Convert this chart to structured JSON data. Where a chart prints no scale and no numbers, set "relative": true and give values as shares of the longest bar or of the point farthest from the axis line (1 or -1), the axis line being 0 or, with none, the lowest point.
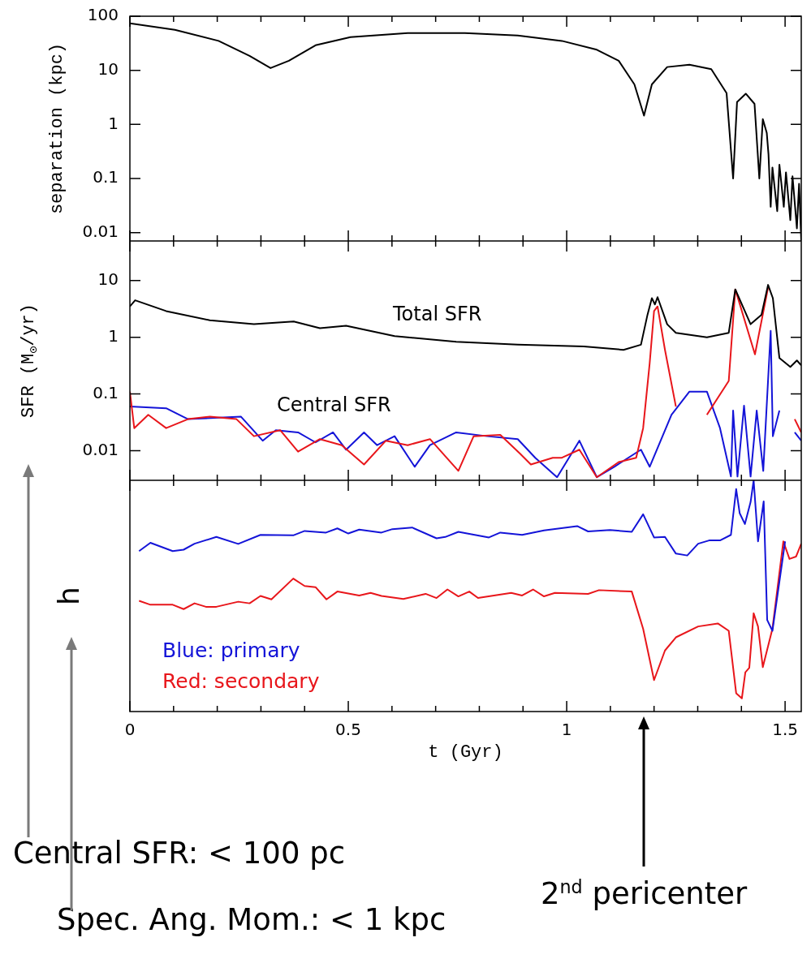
{
  "chart_data": [
    {
      "type": "line",
      "ylabel": "separation (kpc)",
      "log": "y",
      "xlim": [
        0,
        1.537
      ],
      "ylim": [
        0.007,
        100
      ],
      "yticks": [
        0.01,
        0.1,
        1,
        10,
        100
      ],
      "tick_labels": "y",
      "xticks": [
        0,
        {
          "value": 0.1,
          "label": null
        },
        {
          "value": 0.2,
          "label": null
        },
        {
          "value": 0.3,
          "label": null
        },
        {
          "value": 0.4,
          "label": null
        },
        0.5,
        {
          "value": 0.6,
          "label": null
        },
        {
          "value": 0.7,
          "label": null
        },
        {
          "value": 0.8,
          "label": null
        },
        {
          "value": 0.9,
          "label": null
        },
        1,
        {
          "value": 1.1,
          "label": null
        },
        {
          "value": 1.2,
          "label": null
        },
        {
          "value": 1.3,
          "label": null
        },
        {
          "value": 1.4,
          "label": null
        },
        1.5
      ],
      "series": [
        {
          "color": "#000000",
          "x": [
            0,
            0.103,
            0.203,
            0.274,
            0.322,
            0.364,
            0.425,
            0.505,
            0.636,
            0.767,
            0.888,
            0.989,
            1.069,
            1.119,
            1.155,
            1.177,
            1.195,
            1.23,
            1.281,
            1.331,
            1.366,
            1.381,
            1.39,
            1.41,
            1.43,
            1.441,
            1.449,
            1.458,
            1.462,
            1.467,
            1.471,
            1.482,
            1.487,
            1.497,
            1.502,
            1.512,
            1.517,
            1.527,
            1.532,
            1.537
          ],
          "values": [
            74,
            56,
            35,
            18.5,
            11,
            15,
            29,
            41,
            49,
            49,
            44,
            35,
            24,
            15,
            5.5,
            1.45,
            5.5,
            11.5,
            12.7,
            10.5,
            3.8,
            0.1,
            2.6,
            3.7,
            2.4,
            0.1,
            1.25,
            0.7,
            0.28,
            0.03,
            0.16,
            0.025,
            0.18,
            0.03,
            0.13,
            0.017,
            0.11,
            0.012,
            0.08,
            0.007
          ]
        }
      ]
    },
    {
      "type": "line",
      "ylabel": "SFR (M$_{⊙}$/yr)",
      "log": "y",
      "xlim": [
        0,
        1.537
      ],
      "ylim": [
        0.003,
        50
      ],
      "yticks": [
        0.01,
        0.1,
        1,
        10
      ],
      "tick_labels": "y",
      "xticks": [
        0,
        {
          "value": 0.1,
          "label": null
        },
        {
          "value": 0.2,
          "label": null
        },
        {
          "value": 0.3,
          "label": null
        },
        {
          "value": 0.4,
          "label": null
        },
        0.5,
        {
          "value": 0.6,
          "label": null
        },
        {
          "value": 0.7,
          "label": null
        },
        {
          "value": 0.8,
          "label": null
        },
        {
          "value": 0.9,
          "label": null
        },
        1,
        {
          "value": 1.1,
          "label": null
        },
        {
          "value": 1.2,
          "label": null
        },
        {
          "value": 1.3,
          "label": null
        },
        {
          "value": 1.4,
          "label": null
        },
        1.5
      ],
      "annotations": [
        "Total SFR",
        "Central SFR"
      ],
      "series": [
        {
          "color": "#000000",
          "x": [
            0,
            0.012,
            0.083,
            0.183,
            0.284,
            0.375,
            0.435,
            0.495,
            0.606,
            0.747,
            0.888,
            1.039,
            1.13,
            1.17,
            1.185,
            1.195,
            1.202,
            1.208,
            1.23,
            1.25,
            1.321,
            1.371,
            1.386,
            1.421,
            1.446,
            1.461,
            1.472,
            1.487,
            1.512,
            1.527,
            1.537
          ],
          "values": [
            3.5,
            4.5,
            2.9,
            2.0,
            1.7,
            1.9,
            1.45,
            1.6,
            1.05,
            0.83,
            0.74,
            0.69,
            0.6,
            0.74,
            2.5,
            4.9,
            3.8,
            5.1,
            1.7,
            1.2,
            1.0,
            1.2,
            7,
            1.7,
            2.5,
            8.4,
            4.9,
            0.43,
            0.3,
            0.39,
            0.32
          ]
        },
        {
          "color": "#e8161b",
          "x": [
            0,
            0.01,
            0.042,
            0.083,
            0.133,
            0.183,
            0.244,
            0.284,
            0.344,
            0.385,
            0.435,
            0.485,
            0.536,
            0.586,
            0.636,
            0.687,
            0.752,
            0.787,
            0.848,
            0.893,
            0.918,
            0.968,
            0.989,
            1.029,
            1.069,
            1.119,
            1.159,
            1.175,
            1.19,
            1.2,
            1.208,
            1.225,
            1.25,
            1.276,
            1.301,
            1.321,
            1.371,
            1.386,
            1.431,
            1.461,
            1.492,
            1.512,
            1.522,
            1.537
          ],
          "values": [
            0.11,
            0.025,
            0.043,
            0.025,
            0.036,
            0.04,
            0.036,
            0.018,
            0.023,
            0.0096,
            0.016,
            0.0125,
            0.0057,
            0.015,
            0.0125,
            0.016,
            0.0044,
            0.018,
            0.019,
            0.0089,
            0.0057,
            0.0075,
            0.0075,
            0.0104,
            0.0034,
            0.0063,
            0.0075,
            0.025,
            0.35,
            2.9,
            3.5,
            0.6,
            0.06,
            null,
            null,
            0.043,
            0.17,
            7,
            0.5,
            7.5,
            null,
            null,
            0.036,
            0.021
          ]
        },
        {
          "color": "#1414d8",
          "x": [
            0,
            0.083,
            0.133,
            0.254,
            0.304,
            0.334,
            0.385,
            0.425,
            0.465,
            0.495,
            0.536,
            0.566,
            0.606,
            0.652,
            0.687,
            0.747,
            0.818,
            0.888,
            0.928,
            0.978,
            1.029,
            1.069,
            1.109,
            1.17,
            1.19,
            1.24,
            1.281,
            1.321,
            1.351,
            1.376,
            1.381,
            1.391,
            1.406,
            1.421,
            1.435,
            1.45,
            1.467,
            1.472,
            1.487,
            1.503,
            1.522,
            1.537
          ],
          "values": [
            0.06,
            0.056,
            0.036,
            0.04,
            0.015,
            0.023,
            0.021,
            0.014,
            0.021,
            0.0104,
            0.021,
            0.0125,
            0.018,
            0.0052,
            0.0125,
            0.021,
            0.018,
            0.016,
            0.0075,
            0.0034,
            0.015,
            0.0034,
            0.0052,
            0.0104,
            0.0052,
            0.043,
            0.11,
            0.11,
            0.025,
            0.0035,
            0.051,
            0.0035,
            0.062,
            0.0035,
            0.051,
            0.0044,
            1.3,
            0.018,
            0.051,
            null,
            0.021,
            0.015
          ]
        }
      ]
    },
    {
      "type": "line",
      "ylabel": "h",
      "xlabel": "t (Gyr)",
      "relative": true,
      "xlim": [
        0,
        1.537
      ],
      "tick_labels": "x",
      "legend": "bottom left",
      "xticks": [
        0,
        {
          "value": 0.1,
          "label": null
        },
        {
          "value": 0.2,
          "label": null
        },
        {
          "value": 0.3,
          "label": null
        },
        {
          "value": 0.4,
          "label": null
        },
        0.5,
        {
          "value": 0.6,
          "label": null
        },
        {
          "value": 0.7,
          "label": null
        },
        {
          "value": 0.8,
          "label": null
        },
        {
          "value": 0.9,
          "label": null
        },
        1,
        {
          "value": 1.1,
          "label": null
        },
        {
          "value": 1.2,
          "label": null
        },
        {
          "value": 1.3,
          "label": null
        },
        {
          "value": 1.4,
          "label": null
        },
        1.5
      ],
      "annotations": [
        "Central SFR: < 100 pc",
        "Spec. Ang. Mom.: < 1 kpc",
        "2$^{nd}$ pericenter"
      ],
      "series": [
        {
          "name": "Blue: primary",
          "color": "#1414d8",
          "x": [
            0.021,
            0.047,
            0.098,
            0.123,
            0.148,
            0.198,
            0.248,
            0.299,
            0.374,
            0.4,
            0.449,
            0.475,
            0.5,
            0.525,
            0.576,
            0.601,
            0.646,
            0.702,
            0.722,
            0.752,
            0.822,
            0.848,
            0.898,
            0.948,
            1.024,
            1.049,
            1.099,
            1.149,
            1.175,
            1.2,
            1.225,
            1.25,
            1.276,
            1.301,
            1.326,
            1.351,
            1.376,
            1.388,
            1.396,
            1.408,
            1.421,
            1.428,
            1.438,
            1.451,
            1.459,
            1.471,
            1.5
          ],
          "values": [
            0.694,
            0.73,
            0.694,
            0.7,
            0.726,
            0.755,
            0.725,
            0.764,
            0.762,
            0.781,
            0.774,
            0.792,
            0.77,
            0.787,
            0.774,
            0.789,
            0.796,
            0.749,
            0.755,
            0.777,
            0.753,
            0.774,
            0.764,
            0.783,
            0.802,
            0.779,
            0.785,
            0.777,
            0.853,
            0.753,
            0.755,
            0.683,
            0.675,
            0.726,
            0.74,
            0.74,
            0.764,
            0.962,
            0.858,
            0.811,
            0.906,
            1,
            0.736,
            0.909,
            0.396,
            0.349,
            0.736
          ]
        },
        {
          "name": "Red: secondary",
          "color": "#e8161b",
          "x": [
            0.021,
            0.047,
            0.098,
            0.123,
            0.148,
            0.174,
            0.198,
            0.248,
            0.274,
            0.299,
            0.324,
            0.374,
            0.4,
            0.425,
            0.45,
            0.475,
            0.525,
            0.551,
            0.576,
            0.626,
            0.677,
            0.702,
            0.727,
            0.752,
            0.777,
            0.797,
            0.873,
            0.898,
            0.923,
            0.948,
            0.973,
            1.049,
            1.074,
            1.149,
            1.175,
            1.2,
            1.225,
            1.25,
            1.301,
            1.346,
            1.371,
            1.388,
            1.401,
            1.409,
            1.418,
            1.428,
            1.438,
            1.449,
            1.471,
            1.496,
            1.51,
            1.525,
            1.537
          ],
          "values": [
            0.479,
            0.462,
            0.462,
            0.443,
            0.468,
            0.453,
            0.453,
            0.475,
            0.468,
            0.5,
            0.485,
            0.575,
            0.543,
            0.538,
            0.485,
            0.519,
            0.502,
            0.513,
            0.5,
            0.487,
            0.509,
            0.491,
            0.528,
            0.498,
            0.519,
            0.491,
            0.513,
            0.502,
            0.528,
            0.498,
            0.513,
            0.509,
            0.525,
            0.519,
            0.358,
            0.136,
            0.264,
            0.321,
            0.368,
            0.381,
            0.349,
            0.079,
            0.057,
            0.17,
            0.189,
            0.425,
            0.368,
            0.192,
            0.358,
            0.736,
            0.66,
            0.67,
            0.726
          ]
        }
      ]
    }
  ]
}
